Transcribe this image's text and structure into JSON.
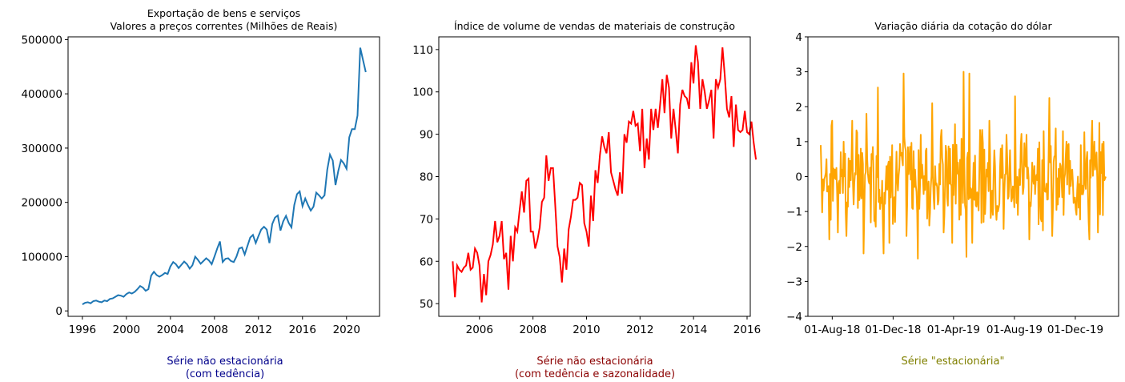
{
  "colors": {
    "series_blue": "#1f77b4",
    "series_red": "#ff0000",
    "series_orange": "#ffa500",
    "caption_blue": "#00008b",
    "caption_red": "#8b0000",
    "caption_olive": "#808000"
  },
  "captions": [
    {
      "line1": "Série não estacionária",
      "line2": "(com tedência)"
    },
    {
      "line1": "Série não estacionária",
      "line2": "(com tedência e sazonalidade)"
    },
    {
      "line1": "Série \"estacionária\"",
      "line2": ""
    }
  ],
  "chart_data": [
    {
      "type": "line",
      "title": "Exportação de bens e serviços",
      "subtitle": "Valores a preços correntes (Milhões de Reais)",
      "xlabel": "",
      "ylabel": "",
      "xlim": [
        1994.7,
        2023.0
      ],
      "ylim": [
        -10000,
        505000
      ],
      "xticks": [
        1996,
        2000,
        2004,
        2008,
        2012,
        2016,
        2020
      ],
      "xtick_labels": [
        "1996",
        "2000",
        "2004",
        "2008",
        "2012",
        "2016",
        "2020"
      ],
      "yticks": [
        0,
        100000,
        200000,
        300000,
        400000,
        500000
      ],
      "ytick_labels": [
        "0",
        "100000",
        "200000",
        "300000",
        "400000",
        "500000"
      ],
      "series": [
        {
          "color": "#1f77b4",
          "x": [
            1996.0,
            1996.25,
            1996.5,
            1996.75,
            1997.0,
            1997.25,
            1997.5,
            1997.75,
            1998.0,
            1998.25,
            1998.5,
            1998.75,
            1999.0,
            1999.25,
            1999.5,
            1999.75,
            2000.0,
            2000.25,
            2000.5,
            2000.75,
            2001.0,
            2001.25,
            2001.5,
            2001.75,
            2002.0,
            2002.25,
            2002.5,
            2002.75,
            2003.0,
            2003.25,
            2003.5,
            2003.75,
            2004.0,
            2004.25,
            2004.5,
            2004.75,
            2005.0,
            2005.25,
            2005.5,
            2005.75,
            2006.0,
            2006.25,
            2006.5,
            2006.75,
            2007.0,
            2007.25,
            2007.5,
            2007.75,
            2008.0,
            2008.25,
            2008.5,
            2008.75,
            2009.0,
            2009.25,
            2009.5,
            2009.75,
            2010.0,
            2010.25,
            2010.5,
            2010.75,
            2011.0,
            2011.25,
            2011.5,
            2011.75,
            2012.0,
            2012.25,
            2012.5,
            2012.75,
            2013.0,
            2013.25,
            2013.5,
            2013.75,
            2014.0,
            2014.25,
            2014.5,
            2014.75,
            2015.0,
            2015.25,
            2015.5,
            2015.75,
            2016.0,
            2016.25,
            2016.5,
            2016.75,
            2017.0,
            2017.25,
            2017.5,
            2017.75,
            2018.0,
            2018.25,
            2018.5,
            2018.75,
            2019.0,
            2019.25,
            2019.5,
            2019.75,
            2020.0,
            2020.25,
            2020.5,
            2020.75,
            2021.0,
            2021.25,
            2021.5,
            2021.75
          ],
          "y": [
            12000,
            15000,
            16000,
            14000,
            18000,
            19000,
            17000,
            16000,
            19000,
            18000,
            22000,
            23000,
            26000,
            29000,
            28000,
            26000,
            31000,
            34000,
            32000,
            35000,
            40000,
            46000,
            43000,
            37000,
            40000,
            65000,
            72000,
            66000,
            63000,
            66000,
            70000,
            68000,
            82000,
            90000,
            86000,
            79000,
            85000,
            91000,
            86000,
            78000,
            84000,
            100000,
            94000,
            87000,
            92000,
            97000,
            93000,
            86000,
            100000,
            115000,
            128000,
            90000,
            96000,
            97000,
            92000,
            90000,
            100000,
            115000,
            117000,
            104000,
            120000,
            135000,
            140000,
            125000,
            138000,
            150000,
            155000,
            150000,
            125000,
            160000,
            172000,
            176000,
            148000,
            165000,
            175000,
            162000,
            154000,
            195000,
            215000,
            220000,
            193000,
            207000,
            195000,
            185000,
            192000,
            218000,
            213000,
            207000,
            213000,
            260000,
            288000,
            277000,
            232000,
            258000,
            278000,
            272000,
            262000,
            320000,
            335000,
            335000,
            360000,
            485000,
            462000,
            440000
          ]
        }
      ]
    },
    {
      "type": "line",
      "title": "Índice de volume de vendas de materiais de construção",
      "xlabel": "",
      "ylabel": "",
      "xlim": [
        2004.48,
        2016.12
      ],
      "ylim": [
        47,
        113
      ],
      "xticks": [
        2006,
        2008,
        2010,
        2012,
        2014,
        2016
      ],
      "xtick_labels": [
        "2006",
        "2008",
        "2010",
        "2012",
        "2014",
        "2016"
      ],
      "yticks": [
        50,
        60,
        70,
        80,
        90,
        100,
        110
      ],
      "ytick_labels": [
        "50",
        "60",
        "70",
        "80",
        "90",
        "100",
        "110"
      ],
      "series": [
        {
          "color": "#ff0000",
          "x_start": 2005.0,
          "x_step": 0.08333,
          "y": [
            60,
            51.5,
            59,
            58,
            57.5,
            58.5,
            59,
            62,
            58,
            58.5,
            63,
            62,
            59,
            50.3,
            57,
            52,
            60,
            61.5,
            64,
            69.5,
            64.5,
            66,
            69.5,
            60.5,
            62,
            53.3,
            66,
            60,
            68,
            67,
            72,
            76.5,
            71.5,
            79,
            79.5,
            67,
            67,
            63,
            65,
            68,
            74,
            75,
            85,
            79,
            82,
            82,
            73,
            63.5,
            61,
            55,
            63,
            58,
            67.5,
            70.5,
            74.5,
            74.5,
            75,
            78.5,
            78,
            69,
            67,
            63.5,
            75.5,
            69.5,
            81.5,
            78.5,
            85,
            89.5,
            87,
            85.5,
            90.5,
            81,
            79,
            77,
            75.5,
            81,
            76,
            90,
            88,
            93,
            92.5,
            95.5,
            92,
            92.5,
            86,
            96,
            82,
            89,
            84,
            96,
            91,
            96,
            91.5,
            97,
            103,
            95,
            104,
            101,
            89,
            96,
            91,
            85.5,
            97,
            100.5,
            99,
            98.5,
            96,
            107,
            102,
            111,
            107,
            96,
            103,
            100,
            96,
            98,
            100.5,
            89,
            103,
            101,
            103,
            110.5,
            104,
            96,
            94,
            99,
            87,
            97,
            91,
            90.5,
            91,
            95.5,
            90.5,
            90,
            93,
            88,
            84
          ]
        }
      ]
    },
    {
      "type": "line",
      "title": "Variação diária da cotação do dólar",
      "xlabel": "",
      "ylabel": "",
      "ylim": [
        -4,
        4
      ],
      "yticks": [
        -4,
        -3,
        -2,
        -1,
        0,
        1,
        2,
        3,
        4
      ],
      "ytick_labels": [
        "−4",
        "−3",
        "−2",
        "−1",
        "0",
        "1",
        "2",
        "3",
        "4"
      ],
      "xtick_labels": [
        "01-Aug-18",
        "01-Dec-18",
        "01-Apr-19",
        "01-Aug-19",
        "01-Dec-19"
      ],
      "x_range_dates": [
        "2018-07-09",
        "2020-01-31"
      ],
      "series": [
        {
          "color": "#ffa500",
          "n_points": 400,
          "sample_values": [
            0.9,
            -0.4,
            0.5,
            -1.8,
            1.6,
            0.2,
            -1.6,
            0.7,
            1.0,
            -1.7,
            -0.3,
            1.6,
            0.1,
            -0.9,
            0.8,
            -2.2,
            1.8,
            -0.2,
            0.5,
            -1.2,
            2.55,
            -0.6,
            -2.2,
            0.3,
            -1.9,
            0.9,
            -1.3,
            -0.4,
            0.6,
            2.95,
            -1.7,
            0.4,
            -0.9,
            0.2,
            -2.35,
            1.2,
            -0.5,
            0.8,
            -1.4,
            2.1,
            0.3,
            -0.8,
            1.1,
            -1.6,
            0.7,
            -0.2,
            -1.9,
            1.5,
            0.4,
            -1.1,
            3.0,
            -2.3,
            2.95,
            -1.9,
            0.6,
            -0.7,
            1.0,
            -1.3,
            0.2,
            1.6,
            -0.4,
            0.3,
            -1.0,
            0.8,
            -1.5,
            1.2,
            0.1,
            -0.6,
            2.3,
            -1.1,
            0.9,
            -0.3,
            1.2,
            -1.8,
            0.4,
            -0.5,
            0.8,
            -1.2,
            1.3,
            -0.2,
            2.25,
            -1.7,
            0.6,
            -0.8,
            0.3,
            -1.1,
            1.0,
            -0.5,
            0.2,
            -0.6,
            0.0
          ],
          "value_range": [
            -2.35,
            3.0
          ]
        }
      ]
    }
  ]
}
